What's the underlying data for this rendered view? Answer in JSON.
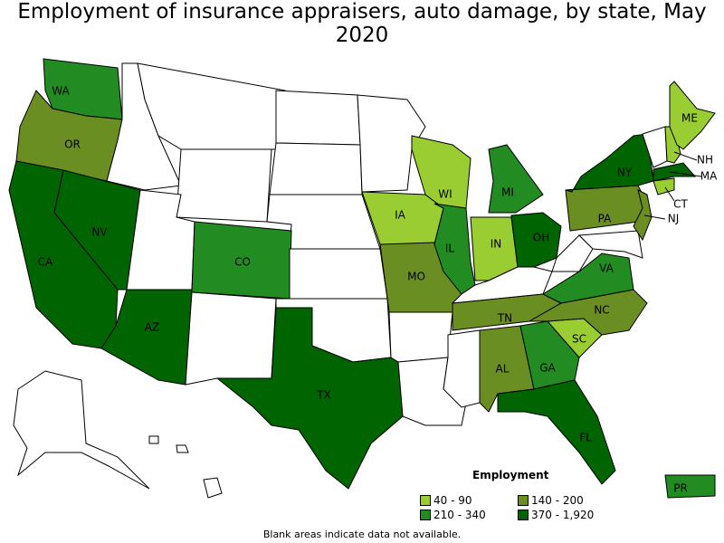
{
  "title": "Employment of insurance appraisers, auto damage, by state, May 2020",
  "legend": {
    "title": "Employment",
    "items": [
      {
        "label": "40 - 90",
        "color": "#9acd32"
      },
      {
        "label": "210 - 340",
        "color": "#228b22"
      },
      {
        "label": "140 - 200",
        "color": "#6b8e23"
      },
      {
        "label": "370 - 1,920",
        "color": "#006400"
      }
    ]
  },
  "note": "Blank areas indicate data not available.",
  "states": [
    {
      "code": "WA",
      "label": "WA",
      "bucket": 1
    },
    {
      "code": "OR",
      "label": "OR",
      "bucket": 2
    },
    {
      "code": "CA",
      "label": "CA",
      "bucket": 3
    },
    {
      "code": "NV",
      "label": "NV",
      "bucket": 3
    },
    {
      "code": "AZ",
      "label": "AZ",
      "bucket": 3
    },
    {
      "code": "CO",
      "label": "CO",
      "bucket": 1
    },
    {
      "code": "TX",
      "label": "TX",
      "bucket": 3
    },
    {
      "code": "IA",
      "label": "IA",
      "bucket": 0
    },
    {
      "code": "MO",
      "label": "MO",
      "bucket": 2
    },
    {
      "code": "WI",
      "label": "WI",
      "bucket": 0
    },
    {
      "code": "IL",
      "label": "IL",
      "bucket": 1
    },
    {
      "code": "MI",
      "label": "MI",
      "bucket": 1
    },
    {
      "code": "IN",
      "label": "IN",
      "bucket": 0
    },
    {
      "code": "OH",
      "label": "OH",
      "bucket": 3
    },
    {
      "code": "TN",
      "label": "TN",
      "bucket": 2
    },
    {
      "code": "AL",
      "label": "AL",
      "bucket": 2
    },
    {
      "code": "GA",
      "label": "GA",
      "bucket": 1
    },
    {
      "code": "FL",
      "label": "FL",
      "bucket": 3
    },
    {
      "code": "SC",
      "label": "SC",
      "bucket": 0
    },
    {
      "code": "NC",
      "label": "NC",
      "bucket": 2
    },
    {
      "code": "VA",
      "label": "VA",
      "bucket": 1
    },
    {
      "code": "PA",
      "label": "PA",
      "bucket": 2
    },
    {
      "code": "NY",
      "label": "NY",
      "bucket": 3
    },
    {
      "code": "NJ",
      "label": "NJ",
      "bucket": 2
    },
    {
      "code": "ME",
      "label": "ME",
      "bucket": 0
    },
    {
      "code": "NH",
      "label": "NH",
      "bucket": 0
    },
    {
      "code": "MA",
      "label": "MA",
      "bucket": 3
    },
    {
      "code": "CT",
      "label": "CT",
      "bucket": 0
    },
    {
      "code": "PR",
      "label": "PR",
      "bucket": 1
    }
  ]
}
